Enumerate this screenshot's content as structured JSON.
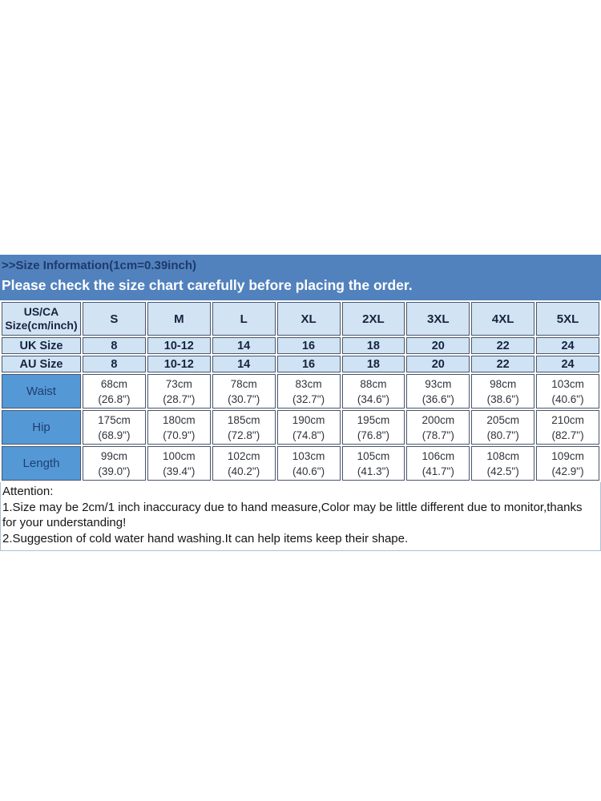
{
  "banner": {
    "title": ">>Size Information(1cm=0.39inch)",
    "subtitle": "Please check the size chart carefully before placing the order."
  },
  "size_table": {
    "corner": {
      "line1": "US/CA",
      "line2": "Size(cm/inch)"
    },
    "sizes": [
      "S",
      "M",
      "L",
      "XL",
      "2XL",
      "3XL",
      "4XL",
      "5XL"
    ],
    "simple_rows": [
      {
        "label": "UK Size",
        "values": [
          "8",
          "10-12",
          "14",
          "16",
          "18",
          "20",
          "22",
          "24"
        ]
      },
      {
        "label": "AU Size",
        "values": [
          "8",
          "10-12",
          "14",
          "16",
          "18",
          "20",
          "22",
          "24"
        ]
      }
    ],
    "measure_rows": [
      {
        "label": "Waist",
        "values": [
          {
            "cm": "68cm",
            "inch": "(26.8\")"
          },
          {
            "cm": "73cm",
            "inch": "(28.7\")"
          },
          {
            "cm": "78cm",
            "inch": "(30.7\")"
          },
          {
            "cm": "83cm",
            "inch": "(32.7\")"
          },
          {
            "cm": "88cm",
            "inch": "(34.6\")"
          },
          {
            "cm": "93cm",
            "inch": "(36.6\")"
          },
          {
            "cm": "98cm",
            "inch": "(38.6\")"
          },
          {
            "cm": "103cm",
            "inch": "(40.6\")"
          }
        ]
      },
      {
        "label": "Hip",
        "values": [
          {
            "cm": "175cm",
            "inch": "(68.9\")"
          },
          {
            "cm": "180cm",
            "inch": "(70.9\")"
          },
          {
            "cm": "185cm",
            "inch": "(72.8\")"
          },
          {
            "cm": "190cm",
            "inch": "(74.8\")"
          },
          {
            "cm": "195cm",
            "inch": "(76.8\")"
          },
          {
            "cm": "200cm",
            "inch": "(78.7\")"
          },
          {
            "cm": "205cm",
            "inch": "(80.7\")"
          },
          {
            "cm": "210cm",
            "inch": "(82.7\")"
          }
        ]
      },
      {
        "label": "Length",
        "values": [
          {
            "cm": "99cm",
            "inch": "(39.0\")"
          },
          {
            "cm": "100cm",
            "inch": "(39.4\")"
          },
          {
            "cm": "102cm",
            "inch": "(40.2\")"
          },
          {
            "cm": "103cm",
            "inch": "(40.6\")"
          },
          {
            "cm": "105cm",
            "inch": "(41.3\")"
          },
          {
            "cm": "106cm",
            "inch": "(41.7\")"
          },
          {
            "cm": "108cm",
            "inch": "(42.5\")"
          },
          {
            "cm": "109cm",
            "inch": "(42.9\")"
          }
        ]
      }
    ]
  },
  "attention": {
    "heading": "Attention:",
    "notes": [
      "1.Size may be 2cm/1 inch inaccuracy due to hand measure,Color may be little different due to monitor,thanks for your understanding!",
      "2.Suggestion of cold water hand washing.It can help items keep their shape."
    ]
  },
  "colors": {
    "banner_bg": "#5282bd",
    "banner_title_text": "#1e3a6c",
    "banner_subtitle_text": "#ffffff",
    "header_row_bg": "#d2e3f3",
    "size_rows_bg": "#cfe3f4",
    "measure_label_bg": "#5598d6",
    "navy_text": "#17233f",
    "cell_border": "#4a566b"
  }
}
